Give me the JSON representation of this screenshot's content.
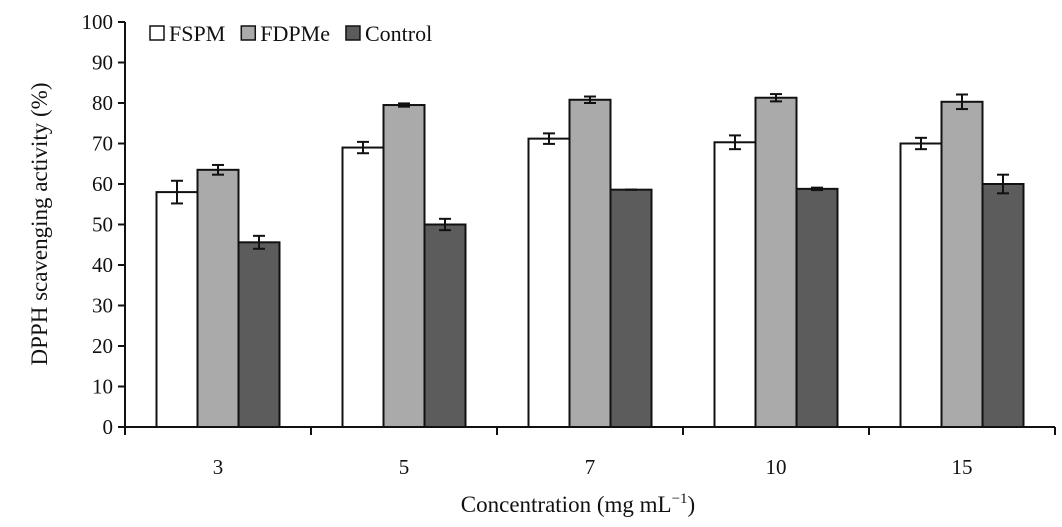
{
  "chart_data": {
    "type": "bar",
    "categories": [
      "3",
      "5",
      "7",
      "10",
      "15"
    ],
    "series": [
      {
        "name": "FSPM",
        "color": "#ffffff",
        "values": [
          58,
          69,
          71.2,
          70.3,
          70
        ],
        "errors": [
          2.8,
          1.4,
          1.3,
          1.7,
          1.4
        ]
      },
      {
        "name": "FDPMe",
        "color": "#aaaaaa",
        "values": [
          63.5,
          79.5,
          80.8,
          81.3,
          80.3
        ],
        "errors": [
          1.2,
          0.4,
          0.8,
          0.9,
          1.8
        ]
      },
      {
        "name": "Control",
        "color": "#5c5c5c",
        "values": [
          45.6,
          50,
          58.6,
          58.8,
          60
        ],
        "errors": [
          1.6,
          1.4,
          0,
          0.3,
          2.3
        ]
      }
    ],
    "xlabel": "Concentration (mg mL",
    "xlabel_sup": "−1",
    "xlabel_end": ")",
    "ylabel": "DPPH scavenging activity (%)",
    "ylim": [
      0,
      100
    ],
    "yticks": [
      0,
      10,
      20,
      30,
      40,
      50,
      60,
      70,
      80,
      90,
      100
    ],
    "legend_position": "top-left",
    "grid": false
  }
}
